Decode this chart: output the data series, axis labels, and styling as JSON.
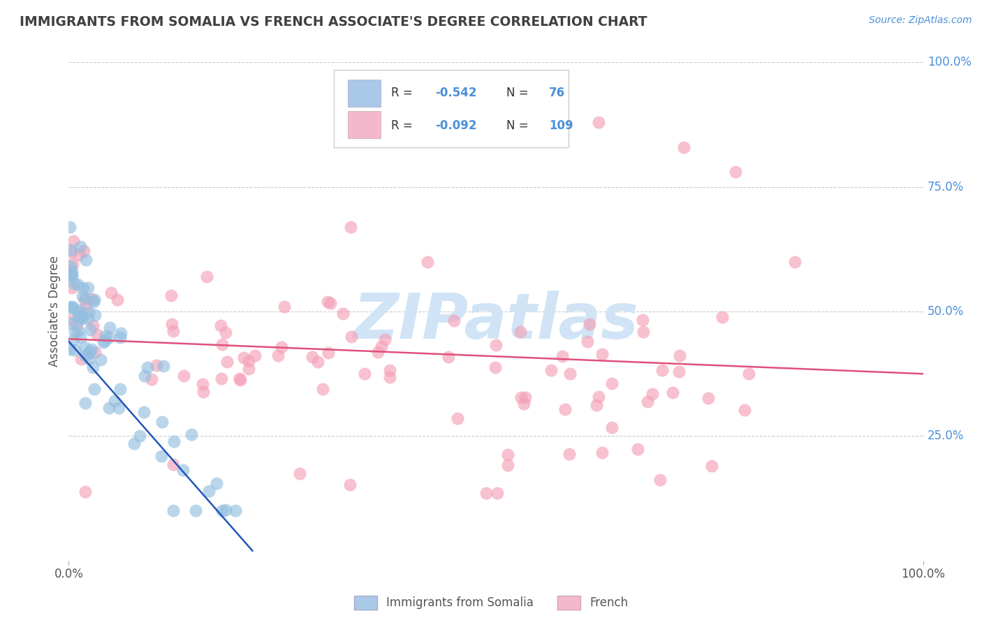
{
  "title": "IMMIGRANTS FROM SOMALIA VS FRENCH ASSOCIATE'S DEGREE CORRELATION CHART",
  "source": "Source: ZipAtlas.com",
  "ylabel": "Associate's Degree",
  "somalia_color": "#94bfe0",
  "french_color": "#f4a0b8",
  "somalia_line_color": "#2255bb",
  "french_line_color": "#e0507a",
  "background_color": "#ffffff",
  "grid_color": "#cccccc",
  "title_color": "#404040",
  "watermark_text": "ZIPatlas",
  "watermark_color": "#d0e4f5",
  "legend_blue_color": "#aac8e8",
  "legend_pink_color": "#f4b8cc",
  "legend_border_color": "#cccccc",
  "right_tick_color": "#4a90d9",
  "R_somalia": "-0.542",
  "N_somalia": "76",
  "R_french": "-0.092",
  "N_french": "109"
}
